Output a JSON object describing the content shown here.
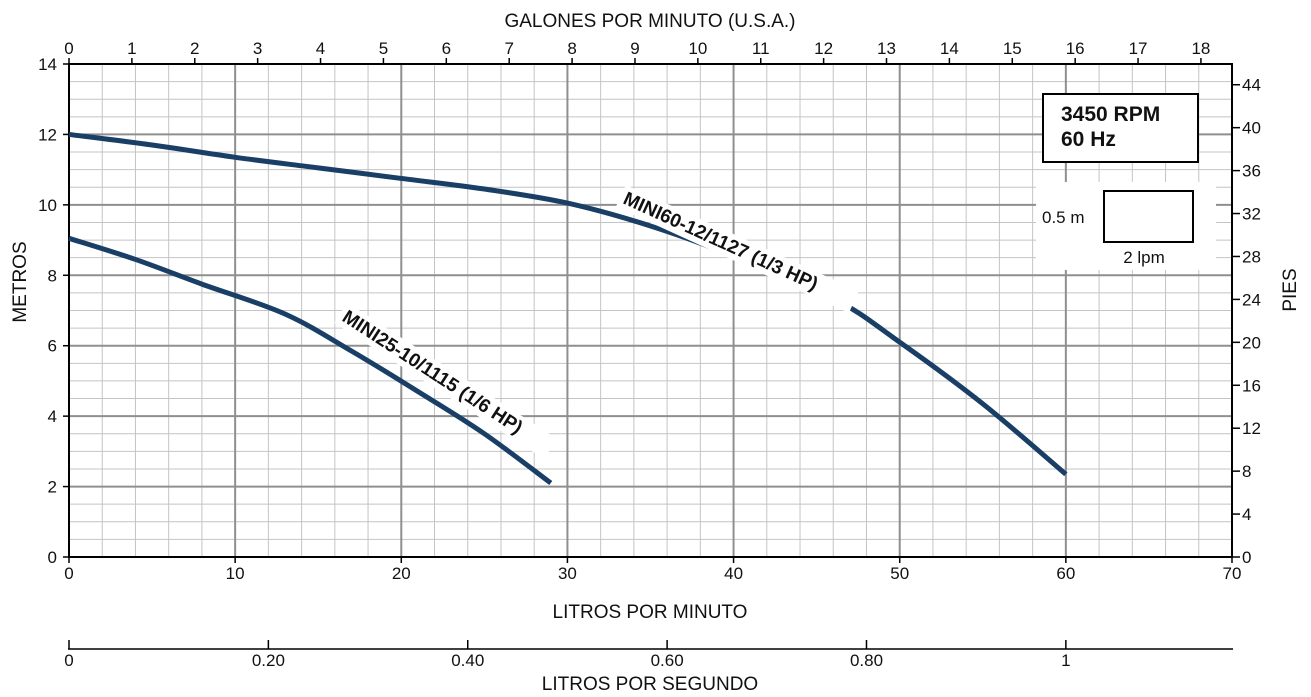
{
  "chart_data": {
    "type": "line",
    "title": "",
    "x_bottom_label": "LITROS POR MINUTO",
    "x_top_label": "GALONES POR MINUTO (U.S.A.)",
    "y_left_label": "METROS",
    "y_right_label": "PIES",
    "x_lps_label": "LITROS POR SEGUNDO",
    "x_bottom_ticks": [
      "0",
      "10",
      "20",
      "30",
      "40",
      "50",
      "60",
      "70"
    ],
    "x_top_ticks": [
      "0",
      "1",
      "2",
      "3",
      "4",
      "5",
      "6",
      "7",
      "8",
      "9",
      "10",
      "11",
      "12",
      "13",
      "14",
      "15",
      "16",
      "17",
      "18"
    ],
    "y_left_ticks": [
      "0",
      "2",
      "4",
      "6",
      "8",
      "10",
      "12",
      "14"
    ],
    "y_right_ticks": [
      "0",
      "4",
      "8",
      "12",
      "16",
      "20",
      "24",
      "28",
      "32",
      "36",
      "40",
      "44"
    ],
    "x_lps_ticks": [
      "0",
      "0.20",
      "0.40",
      "0.60",
      "0.80",
      "1"
    ],
    "xlim": [
      0,
      70
    ],
    "ylim": [
      0,
      14
    ],
    "grid": true,
    "series": [
      {
        "name": "MINI60-12/1127 (1/3 HP)",
        "color": "#1a3f66",
        "x": [
          0,
          5,
          10,
          15,
          20,
          25,
          30,
          35,
          40,
          46,
          50,
          55,
          60
        ],
        "y": [
          12.0,
          11.7,
          11.35,
          11.05,
          10.75,
          10.45,
          10.05,
          9.4,
          8.55,
          7.35,
          6.1,
          4.35,
          2.35
        ]
      },
      {
        "name": "MINI25-10/1115 (1/6 HP)",
        "color": "#1a3f66",
        "x": [
          0,
          4,
          8,
          13,
          17,
          21,
          25,
          29
        ],
        "y": [
          9.05,
          8.45,
          7.75,
          6.9,
          5.85,
          4.7,
          3.5,
          2.1
        ]
      }
    ],
    "info_box": {
      "rpm": "3450 RPM",
      "hz": "60 Hz"
    },
    "scale_key": {
      "vertical": "0.5 m",
      "horizontal": "2 lpm"
    }
  }
}
